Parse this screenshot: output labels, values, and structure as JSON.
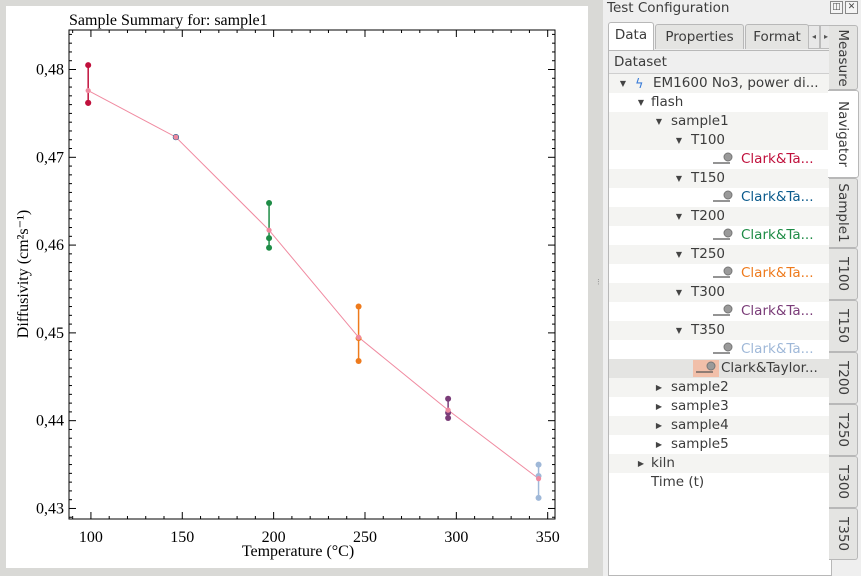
{
  "chart_data": {
    "type": "scatter",
    "title": "Sample Summary for: sample1",
    "xlabel": "Temperature (°C)",
    "ylabel": "Diffusivity (cm²s⁻¹)",
    "xlim": [
      88,
      354
    ],
    "ylim": [
      0.4288,
      0.4845
    ],
    "xticks": [
      100,
      150,
      200,
      250,
      300,
      350
    ],
    "xtick_labels": [
      "100",
      "150",
      "200",
      "250",
      "300",
      "350"
    ],
    "yticks": [
      0.43,
      0.44,
      0.45,
      0.46,
      0.47,
      0.48
    ],
    "ytick_labels": [
      "0,43",
      "0,44",
      "0,45",
      "0,46",
      "0,47",
      "0,48"
    ],
    "grid": false,
    "trend": {
      "color": "#f08aa0",
      "x": [
        98.5,
        146.5,
        197.5,
        246.5,
        295.5,
        345
      ],
      "y": [
        0.4776,
        0.4723,
        0.4617,
        0.4495,
        0.4412,
        0.4334
      ]
    },
    "series": [
      {
        "color": "#c0103c",
        "mean": 0.4776,
        "x": [
          98.5,
          98.5,
          98.5
        ],
        "y": [
          0.4805,
          0.4762,
          0.4762
        ]
      },
      {
        "color": "#0a5a8c",
        "mean": 0.4723,
        "x": [
          146.5,
          146.5,
          146.5
        ],
        "y": [
          0.4723,
          0.4723,
          0.4723
        ]
      },
      {
        "color": "#1e8c46",
        "mean": 0.4617,
        "x": [
          197.5,
          197.5,
          197.5
        ],
        "y": [
          0.4648,
          0.4608,
          0.4597
        ]
      },
      {
        "color": "#ee7a1c",
        "mean": 0.4495,
        "x": [
          246.5,
          246.5,
          246.5
        ],
        "y": [
          0.453,
          0.4494,
          0.4468
        ]
      },
      {
        "color": "#7a3c78",
        "mean": 0.4412,
        "x": [
          295.5,
          295.5,
          295.5
        ],
        "y": [
          0.4425,
          0.4409,
          0.4403
        ]
      },
      {
        "color": "#9fb8d8",
        "mean": 0.4334,
        "x": [
          345,
          345,
          345
        ],
        "y": [
          0.435,
          0.4337,
          0.4312
        ]
      }
    ]
  },
  "dock": {
    "title": "Test Configuration",
    "float_icon": "restore-icon",
    "close_icon": "close-icon",
    "tabs": [
      "Data",
      "Properties",
      "Format"
    ],
    "active_tab": "Data",
    "tree_header": "Dataset",
    "tree": {
      "root": "EM1600 No3, power di...",
      "flash": "flash",
      "sample1": "sample1",
      "temps": [
        {
          "label": "T100",
          "result": "Clark&Ta...",
          "color": "#c0103c"
        },
        {
          "label": "T150",
          "result": "Clark&Ta...",
          "color": "#0a5a8c"
        },
        {
          "label": "T200",
          "result": "Clark&Ta...",
          "color": "#1e8c46"
        },
        {
          "label": "T250",
          "result": "Clark&Ta...",
          "color": "#ee7a1c"
        },
        {
          "label": "T300",
          "result": "Clark&Ta...",
          "color": "#7a3c78"
        },
        {
          "label": "T350",
          "result": "Clark&Ta...",
          "color": "#9fb8d8"
        }
      ],
      "summary": "Clark&Taylor...",
      "samples": [
        "sample2",
        "sample3",
        "sample4",
        "sample5"
      ],
      "kiln": "kiln",
      "time": "Time (t)"
    },
    "side_tabs": [
      "Measure",
      "Navigator",
      "Sample1",
      "T100",
      "T150",
      "T200",
      "T250",
      "T300",
      "T350"
    ],
    "active_side_tab": "Navigator"
  }
}
